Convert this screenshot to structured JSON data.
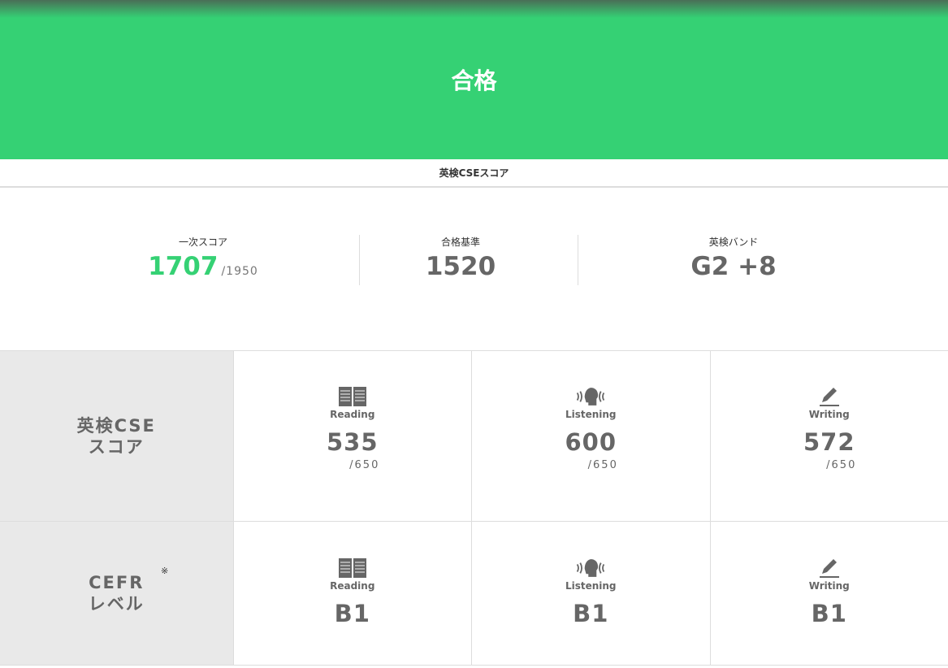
{
  "hero": {
    "title": "合格"
  },
  "section_title": "英検CSEスコア",
  "summary": {
    "first_score": {
      "label": "一次スコア",
      "value": "1707",
      "max": "/1950"
    },
    "pass_line": {
      "label": "合格基準",
      "value": "1520"
    },
    "band": {
      "label": "英検バンド",
      "value": "G2 +8"
    }
  },
  "colors": {
    "accent": "#35d174",
    "text": "#666666"
  },
  "cse": {
    "head_line1": "英検CSE",
    "head_line2": "スコア",
    "cells": [
      {
        "skill": "Reading",
        "icon": "book-icon",
        "score": "535",
        "max": "/650"
      },
      {
        "skill": "Listening",
        "icon": "listening-head-icon",
        "score": "600",
        "max": "/650"
      },
      {
        "skill": "Writing",
        "icon": "pencil-icon",
        "score": "572",
        "max": "/650"
      }
    ]
  },
  "cefr": {
    "head_line1": "CEFR",
    "head_line2": "レベル",
    "note": "※",
    "cells": [
      {
        "skill": "Reading",
        "icon": "book-icon",
        "level": "B1"
      },
      {
        "skill": "Listening",
        "icon": "listening-head-icon",
        "level": "B1"
      },
      {
        "skill": "Writing",
        "icon": "pencil-icon",
        "level": "B1"
      }
    ]
  }
}
